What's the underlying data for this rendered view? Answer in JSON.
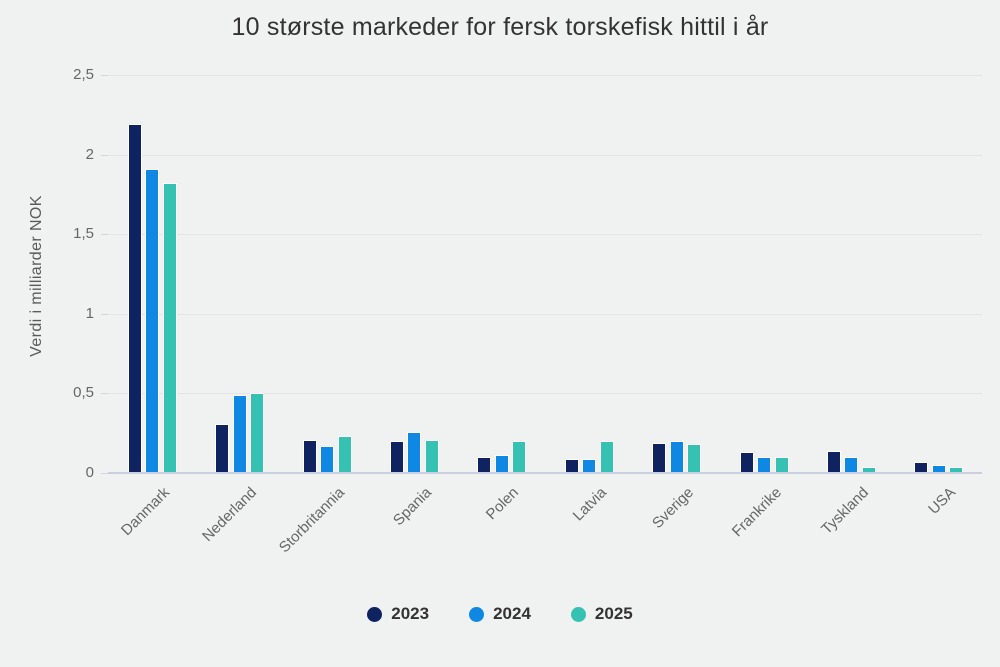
{
  "page": {
    "background": "#f0f2f1"
  },
  "chart_data": {
    "type": "bar",
    "title": "10 største markeder for fersk torskefisk hittil i år",
    "ylabel": "Verdi i milliarder NOK",
    "xlabel": "",
    "categories": [
      "Danmark",
      "Nederland",
      "Storbritannia",
      "Spania",
      "Polen",
      "Latvia",
      "Sverige",
      "Frankrike",
      "Tyskland",
      "USA"
    ],
    "series": [
      {
        "name": "2023",
        "color": "#0f2361",
        "values": [
          2.19,
          0.31,
          0.21,
          0.2,
          0.1,
          0.09,
          0.19,
          0.13,
          0.14,
          0.07
        ]
      },
      {
        "name": "2024",
        "color": "#0e88e2",
        "values": [
          1.91,
          0.49,
          0.17,
          0.26,
          0.11,
          0.09,
          0.2,
          0.1,
          0.1,
          0.05
        ]
      },
      {
        "name": "2025",
        "color": "#36c2b3",
        "values": [
          1.82,
          0.5,
          0.23,
          0.21,
          0.2,
          0.2,
          0.18,
          0.1,
          0.04,
          0.04
        ]
      }
    ],
    "ylim": [
      0,
      2.5
    ],
    "yticks": [
      {
        "value": 0,
        "label": "0"
      },
      {
        "value": 0.5,
        "label": "0,5"
      },
      {
        "value": 1,
        "label": "1"
      },
      {
        "value": 1.5,
        "label": "1,5"
      },
      {
        "value": 2,
        "label": "2"
      },
      {
        "value": 2.5,
        "label": "2,5"
      }
    ],
    "grid": "horizontal",
    "legend_position": "bottom",
    "colors": {
      "background": "#f0f2f1",
      "gridline": "#e2e5e4",
      "axis_line": "#c9cfe0",
      "title_text": "#333333",
      "axis_text": "#666666",
      "legend_text": "#333333"
    }
  }
}
